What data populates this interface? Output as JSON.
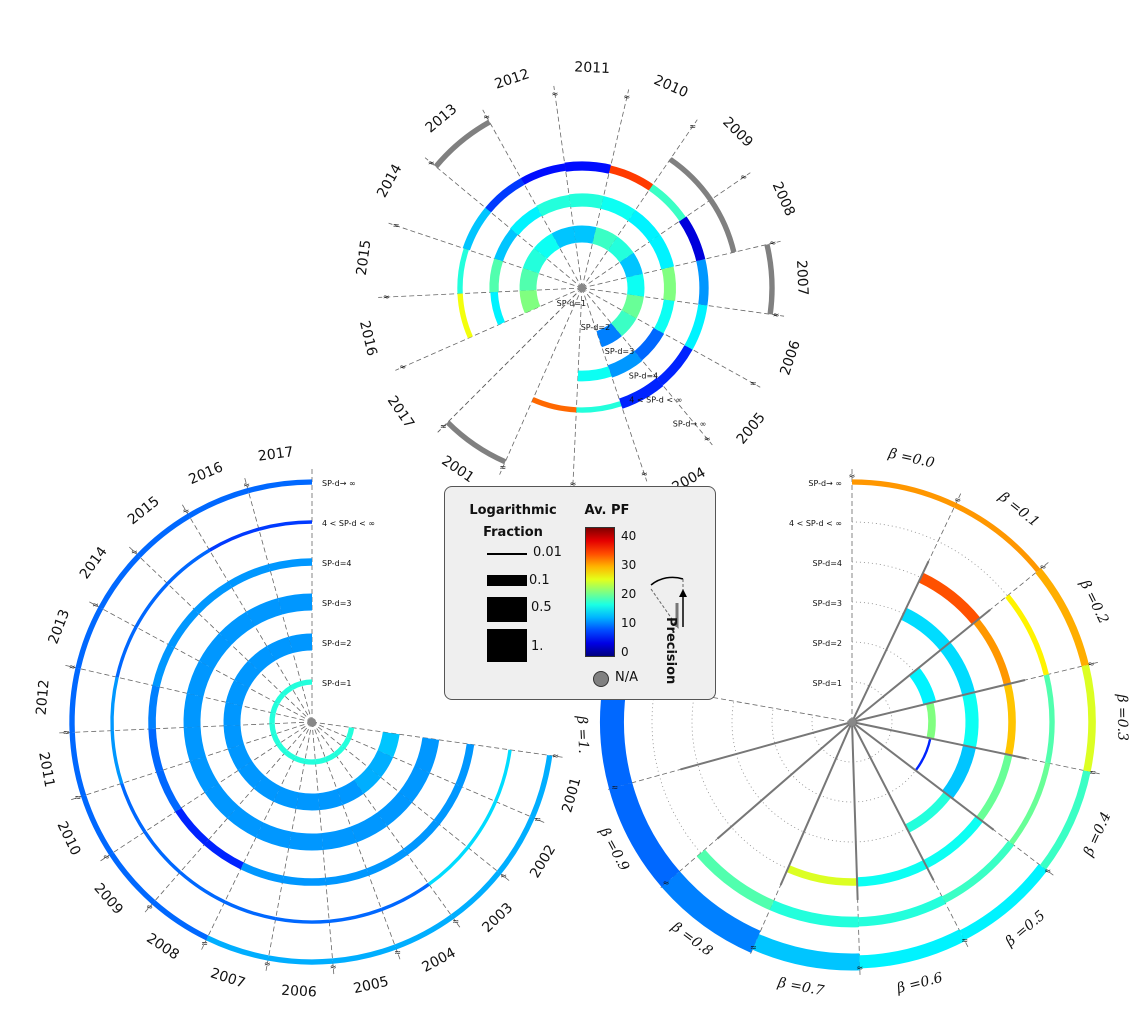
{
  "chart_data": [
    {
      "type": "radial-bar",
      "title": "",
      "angular_axis": [
        "2001",
        "2002",
        "2003",
        "2004",
        "2005",
        "2006",
        "2007",
        "2008",
        "2009",
        "2010",
        "2011",
        "2012",
        "2013",
        "2014",
        "2015",
        "2016",
        "2017"
      ],
      "ring_labels": [
        "SP-d=1",
        "SP-d=2",
        "SP-d=3",
        "SP-d=4",
        "4 < SP-d < ∞",
        "SP-d→ ∞"
      ],
      "series": [
        {
          "ring": "SP-d=1",
          "fraction": [
            0,
            0,
            0,
            0,
            0,
            0,
            0,
            0,
            0,
            0,
            0,
            0,
            0,
            0,
            0,
            0,
            0
          ],
          "avg_pf": [
            null,
            null,
            null,
            null,
            null,
            null,
            null,
            null,
            null,
            null,
            null,
            null,
            null,
            null,
            null,
            null,
            null
          ]
        },
        {
          "ring": "SP-d=2",
          "fraction": [
            0,
            0,
            0,
            0.5,
            0.5,
            0.5,
            0.5,
            0.5,
            0.5,
            0.5,
            0.5,
            0.5,
            0.5,
            0.5,
            0.5,
            0.5,
            0
          ],
          "avg_pf": [
            null,
            null,
            null,
            11,
            19,
            21,
            17,
            14,
            18,
            19,
            14,
            14,
            17,
            18,
            20,
            22,
            null
          ]
        },
        {
          "ring": "SP-d=3",
          "fraction": [
            0,
            0,
            0.2,
            0.3,
            0.25,
            0.2,
            0.25,
            0.3,
            0.3,
            0.3,
            0.3,
            0.25,
            0.2,
            0.15,
            0.15,
            0.1,
            0
          ],
          "avg_pf": [
            null,
            null,
            17,
            12,
            10,
            17,
            22,
            16,
            16,
            17,
            18,
            18,
            16,
            14,
            20,
            16,
            null
          ]
        },
        {
          "ring": "SP-d=4",
          "fraction": [
            0,
            0.05,
            0.05,
            0.2,
            0.15,
            0.15,
            0.15,
            0.15,
            0.1,
            0.1,
            0.15,
            0.1,
            0.1,
            0.1,
            0.05,
            0.05,
            0
          ],
          "avg_pf": [
            null,
            34,
            18,
            7,
            7,
            16,
            12,
            4,
            19,
            36,
            6,
            6,
            8,
            14,
            18,
            27,
            null
          ]
        },
        {
          "ring": "4 < SP-d < ∞",
          "fraction": [
            0,
            0,
            0,
            0,
            0,
            0,
            0,
            0.05,
            0.05,
            0,
            0,
            0,
            0,
            0,
            0,
            0,
            0
          ],
          "avg_pf": [
            null,
            null,
            null,
            null,
            null,
            null,
            null,
            null,
            null,
            null,
            null,
            null,
            null,
            null,
            null,
            null,
            null
          ]
        },
        {
          "ring": "SP-d→ ∞",
          "fraction": [
            0.05,
            0,
            0,
            0,
            0,
            0,
            0.05,
            0,
            0,
            0,
            0,
            0,
            0.05,
            0,
            0,
            0,
            0
          ],
          "avg_pf": [
            null,
            null,
            null,
            null,
            null,
            null,
            null,
            null,
            null,
            null,
            null,
            null,
            null,
            null,
            null,
            null,
            null
          ]
        }
      ]
    },
    {
      "type": "radial-bar",
      "title": "",
      "angular_axis": [
        "2001",
        "2002",
        "2003",
        "2004",
        "2005",
        "2006",
        "2007",
        "2008",
        "2009",
        "2010",
        "2011",
        "2012",
        "2013",
        "2014",
        "2015",
        "2016",
        "2017"
      ],
      "ring_labels": [
        "SP-d=1",
        "SP-d=2",
        "SP-d=3",
        "SP-d=4",
        "4 < SP-d < ∞",
        "SP-d→ ∞"
      ],
      "series": [
        {
          "ring": "SP-d=1",
          "fraction": [
            0.05,
            0.05,
            0.05,
            0.05,
            0.05,
            0.05,
            0.05,
            0.05,
            0.05,
            0.05,
            0.05,
            0.05,
            0.05,
            0.05,
            0.05,
            0.05,
            0.05
          ],
          "avg_pf": [
            18,
            18,
            18,
            18,
            18,
            18,
            18,
            18,
            18,
            18,
            18,
            18,
            18,
            18,
            18,
            18,
            18
          ]
        },
        {
          "ring": "SP-d=2",
          "fraction": [
            0.5,
            0.5,
            0.5,
            0.5,
            0.5,
            0.5,
            0.5,
            0.5,
            0.5,
            0.5,
            0.5,
            0.5,
            0.5,
            0.5,
            0.5,
            0.5,
            0.5
          ],
          "avg_pf": [
            14,
            13,
            13,
            12,
            12,
            12,
            12,
            12,
            12,
            12,
            12,
            12,
            12,
            12,
            12,
            12,
            12
          ]
        },
        {
          "ring": "SP-d=3",
          "fraction": [
            0.5,
            0.5,
            0.5,
            0.5,
            0.5,
            0.5,
            0.5,
            0.5,
            0.5,
            0.5,
            0.5,
            0.5,
            0.5,
            0.5,
            0.5,
            0.5,
            0.5
          ],
          "avg_pf": [
            12,
            12,
            12,
            12,
            12,
            12,
            12,
            12,
            12,
            12,
            12,
            12,
            12,
            12,
            12,
            12,
            12
          ]
        },
        {
          "ring": "SP-d=4",
          "fraction": [
            0.1,
            0.1,
            0.1,
            0.1,
            0.1,
            0.1,
            0.1,
            0.1,
            0.1,
            0.1,
            0.1,
            0.1,
            0.1,
            0.1,
            0.1,
            0.1,
            0.1
          ],
          "avg_pf": [
            12,
            12,
            12,
            12,
            12,
            12,
            12,
            7,
            7,
            10,
            10,
            11,
            12,
            12,
            12,
            12,
            12
          ]
        },
        {
          "ring": "4 < SP-d < ∞",
          "fraction": [
            0.02,
            0.02,
            0.02,
            0.02,
            0.02,
            0.02,
            0.02,
            0.02,
            0.02,
            0.02,
            0.02,
            0.02,
            0.02,
            0.02,
            0.02,
            0.02,
            0.02
          ],
          "avg_pf": [
            15,
            15,
            15,
            10,
            10,
            10,
            10,
            10,
            10,
            10,
            12,
            12,
            10,
            10,
            10,
            8,
            8
          ]
        },
        {
          "ring": "SP-d→ ∞",
          "fraction": [
            0.05,
            0.05,
            0.05,
            0.05,
            0.05,
            0.05,
            0.05,
            0.05,
            0.05,
            0.05,
            0.05,
            0.05,
            0.05,
            0.05,
            0.05,
            0.05,
            0.05
          ],
          "avg_pf": [
            13,
            13,
            13,
            13,
            13,
            13,
            13,
            10,
            10,
            10,
            10,
            10,
            10,
            10,
            10,
            10,
            10
          ]
        }
      ]
    },
    {
      "type": "radial-bar",
      "title": "",
      "angular_axis": [
        "β =0.0",
        "β =0.1",
        "β =0.2",
        "β =0.3",
        "β =0.4",
        "β =0.5",
        "β =0.6",
        "β =0.7",
        "β =0.8",
        "β =0.9",
        "β =1."
      ],
      "ring_labels": [
        "SP-d=1",
        "SP-d=2",
        "SP-d=3",
        "SP-d=4",
        "4 < SP-d < ∞",
        "SP-d→ ∞"
      ],
      "series": [
        {
          "ring": "SP-d=1",
          "fraction": [
            0,
            0,
            0,
            0,
            0,
            0,
            0,
            0,
            0,
            0,
            0
          ],
          "avg_pf": [
            null,
            null,
            null,
            null,
            null,
            null,
            null,
            null,
            null,
            null,
            null
          ]
        },
        {
          "ring": "SP-d=2",
          "fraction": [
            0,
            0,
            0.3,
            0.1,
            0.01,
            0,
            0,
            0,
            0,
            0,
            0
          ],
          "avg_pf": [
            null,
            null,
            16,
            22,
            7,
            null,
            null,
            null,
            null,
            null,
            null
          ]
        },
        {
          "ring": "SP-d=3",
          "fraction": [
            0,
            0.3,
            0.3,
            0.3,
            0.3,
            0.15,
            0,
            0,
            0,
            0,
            0
          ],
          "avg_pf": [
            null,
            15,
            15,
            17,
            14,
            18,
            null,
            null,
            null,
            null,
            null
          ]
        },
        {
          "ring": "SP-d=4",
          "fraction": [
            0,
            0.2,
            0.1,
            0.1,
            0.1,
            0.15,
            0.15,
            0.1,
            0,
            0,
            0
          ],
          "avg_pf": [
            null,
            35,
            32,
            30,
            21,
            17,
            17,
            26,
            null,
            null,
            null
          ]
        },
        {
          "ring": "4 < SP-d < ∞",
          "fraction": [
            0,
            0,
            0.05,
            0.05,
            0.05,
            0.1,
            0.15,
            0.2,
            0.2,
            0,
            0
          ],
          "avg_pf": [
            null,
            null,
            28,
            20,
            21,
            19,
            18,
            18,
            20,
            null,
            null
          ]
        },
        {
          "ring": "SP-d→ ∞",
          "fraction": [
            0.05,
            0.05,
            0.1,
            0.1,
            0.1,
            0.2,
            0.3,
            0.5,
            1,
            1,
            1
          ],
          "avg_pf": [
            32,
            32,
            31,
            26,
            19,
            16,
            16,
            14,
            11,
            10,
            10
          ]
        }
      ]
    }
  ],
  "legend": {
    "fraction_title_line1": "Logarithmic",
    "fraction_title_line2": "Fraction",
    "fraction_scale": [
      {
        "label": "0.01",
        "value": 0.01
      },
      {
        "label": "0.1",
        "value": 0.1
      },
      {
        "label": "0.5",
        "value": 0.5
      },
      {
        "label": "1.",
        "value": 1
      }
    ],
    "color_title": "Av. PF",
    "color_ticks": [
      "40",
      "30",
      "20",
      "10",
      "0"
    ],
    "color_range": [
      0,
      44
    ],
    "na_label": "N/A",
    "na_color": "#808080",
    "precision_label": "Precision"
  }
}
